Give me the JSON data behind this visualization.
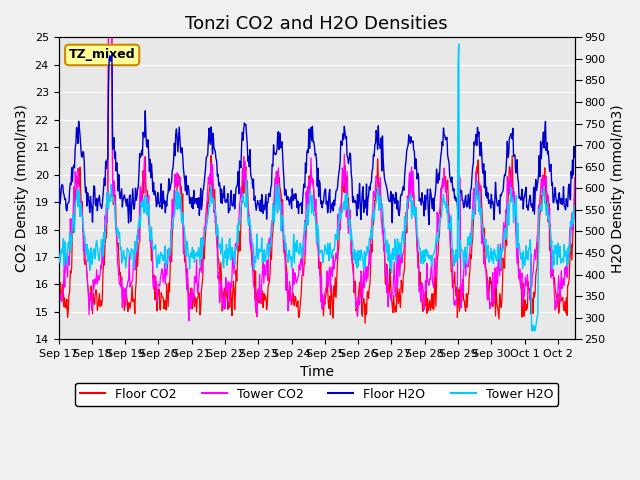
{
  "title": "Tonzi CO2 and H2O Densities",
  "xlabel": "Time",
  "ylabel_left": "CO2 Density (mmol/m3)",
  "ylabel_right": "H2O Density (mmol/m3)",
  "ylim_left": [
    14.0,
    25.0
  ],
  "ylim_right": [
    250,
    950
  ],
  "yticks_left": [
    14.0,
    15.0,
    16.0,
    17.0,
    18.0,
    19.0,
    20.0,
    21.0,
    22.0,
    23.0,
    24.0,
    25.0
  ],
  "yticks_right": [
    250,
    300,
    350,
    400,
    450,
    500,
    550,
    600,
    650,
    700,
    750,
    800,
    850,
    900,
    950
  ],
  "annotation_text": "TZ_mixed",
  "annotation_bg": "#ffff99",
  "annotation_border": "#cc8800",
  "colors": {
    "floor_co2": "#ff0000",
    "tower_co2": "#ff00ff",
    "floor_h2o": "#0000cc",
    "tower_h2o": "#00ccff"
  },
  "legend_labels": [
    "Floor CO2",
    "Tower CO2",
    "Floor H2O",
    "Tower H2O"
  ],
  "background_color": "#e8e8e8",
  "grid_color": "#ffffff",
  "title_fontsize": 13,
  "label_fontsize": 10,
  "tick_fontsize": 8,
  "xtick_labels": [
    "Sep 17",
    "Sep 18",
    "Sep 19",
    "Sep 20",
    "Sep 21",
    "Sep 22",
    "Sep 23",
    "Sep 24",
    "Sep 25",
    "Sep 26",
    "Sep 27",
    "Sep 28",
    "Sep 29",
    "Sep 30",
    "Oct 1",
    "Oct 2"
  ]
}
